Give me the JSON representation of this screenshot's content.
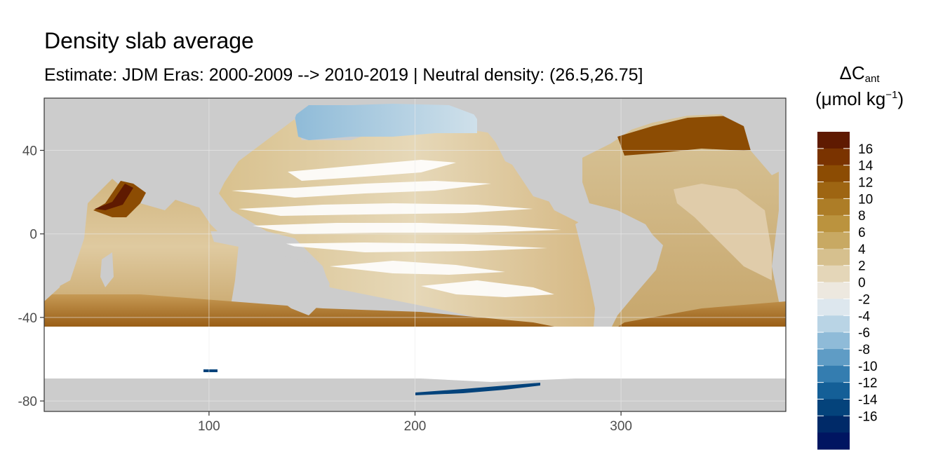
{
  "chart_data": {
    "type": "heatmap",
    "title": "Density slab average",
    "subtitle": "Estimate: JDM Eras: 2000-2009 --> 2010-2019 | Neutral density: (26.5,26.75]",
    "x_ticks": [
      100,
      200,
      300
    ],
    "y_ticks": [
      40,
      0,
      -40,
      -80
    ],
    "xlim": [
      20,
      380
    ],
    "ylim": [
      -85,
      65
    ],
    "grid": true,
    "legend_title_main": "ΔC",
    "legend_title_sub": "ant",
    "legend_units": "(μmol kg",
    "legend_units_exp": "−1",
    "legend_units_close": ")",
    "legend_placement": "right",
    "legend_labels": [
      "16",
      "14",
      "12",
      "10",
      "8",
      "6",
      "4",
      "2",
      "0",
      "-2",
      "-4",
      "-6",
      "-8",
      "-10",
      "-12",
      "-14",
      "-16"
    ],
    "legend_colors": [
      "#5f1a01",
      "#7a3300",
      "#8c4c03",
      "#9e6512",
      "#ad7d27",
      "#bb933e",
      "#c8a963",
      "#d6c08e",
      "#e4d6b8",
      "#ede8df",
      "#dde7ee",
      "#b9d4e5",
      "#8fbbd8",
      "#5f9cc5",
      "#347db0",
      "#145f97",
      "#04437b",
      "#002a68",
      "#001561"
    ],
    "land_color": "#cccccc",
    "nodata_color": "#ffffff"
  }
}
